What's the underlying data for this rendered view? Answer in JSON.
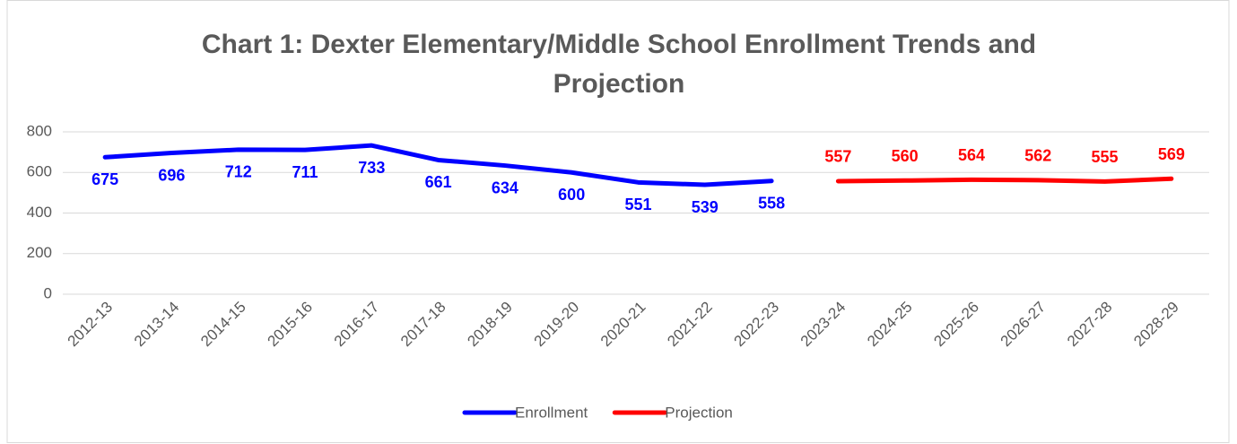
{
  "chart_data": {
    "type": "line",
    "title": "Chart 1: Dexter Elementary/Middle School Enrollment Trends and Projection",
    "categories": [
      "2012-13",
      "2013-14",
      "2014-15",
      "2015-16",
      "2016-17",
      "2017-18",
      "2018-19",
      "2019-20",
      "2020-21",
      "2021-22",
      "2022-23",
      "2023-24",
      "2024-25",
      "2025-26",
      "2026-27",
      "2027-28",
      "2028-29"
    ],
    "series": [
      {
        "name": "Enrollment",
        "color": "#0000ff",
        "values": [
          675,
          696,
          712,
          711,
          733,
          661,
          634,
          600,
          551,
          539,
          558,
          null,
          null,
          null,
          null,
          null,
          null
        ]
      },
      {
        "name": "Projection",
        "color": "#ff0000",
        "values": [
          null,
          null,
          null,
          null,
          null,
          null,
          null,
          null,
          null,
          null,
          null,
          557,
          560,
          564,
          562,
          555,
          569
        ]
      }
    ],
    "ylim": [
      0,
      800
    ],
    "yticks": [
      0,
      200,
      400,
      600,
      800
    ],
    "grid": true,
    "legend": "bottom"
  }
}
